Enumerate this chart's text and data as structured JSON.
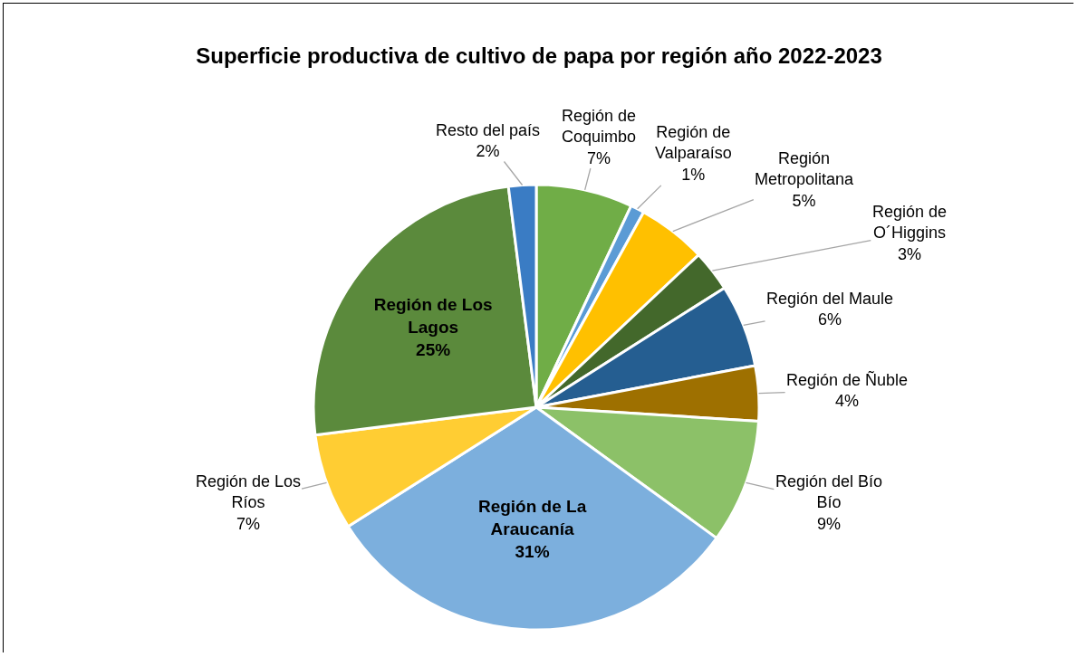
{
  "chart_data": {
    "type": "pie",
    "title": "Superficie productiva de cultivo de papa por región año 2022-2023",
    "categories": [
      "Región de Coquimbo",
      "Región de Valparaíso",
      "Región Metropolitana",
      "Región de O´Higgins",
      "Región del Maule",
      "Región de Ñuble",
      "Región del Bío Bío",
      "Región de La Araucanía",
      "Región de Los Ríos",
      "Región de Los Lagos",
      "Resto del país"
    ],
    "values": [
      7,
      1,
      5,
      3,
      6,
      4,
      9,
      31,
      7,
      25,
      2
    ],
    "value_labels": [
      "7%",
      "1%",
      "5%",
      "3%",
      "6%",
      "4%",
      "9%",
      "31%",
      "7%",
      "25%",
      "2%"
    ],
    "colors": [
      "#70ad47",
      "#5b9bd5",
      "#ffc000",
      "#43682b",
      "#255e91",
      "#9e7000",
      "#8cc168",
      "#7cafdd",
      "#ffcd33",
      "#5b8a3c",
      "#3a7cc4"
    ],
    "legend": false
  }
}
